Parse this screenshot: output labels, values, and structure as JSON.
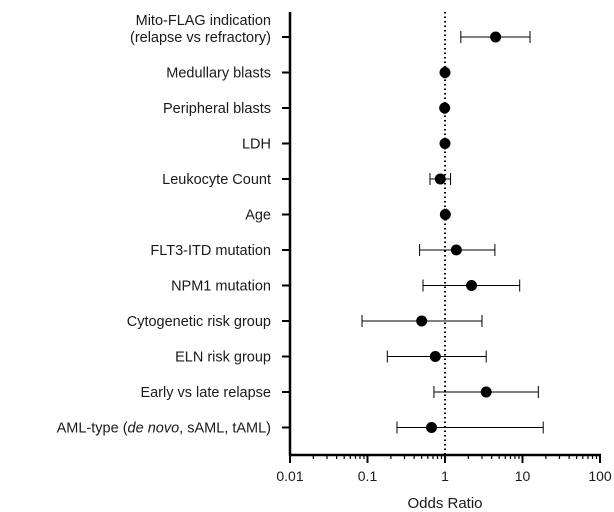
{
  "chart_data": {
    "type": "forest",
    "xlabel": "Odds Ratio",
    "ylabel": "",
    "title": "",
    "x_scale": "log",
    "xlim": [
      0.01,
      100
    ],
    "x_ticks": [
      "0.01",
      "0.1",
      "1",
      "10",
      "100"
    ],
    "reference_line": 1,
    "grid": false,
    "rows": [
      {
        "label_lines": [
          {
            "parts": [
              {
                "text": "Mito-FLAG indication"
              }
            ]
          },
          {
            "parts": [
              {
                "text": "(relapse vs refractory)"
              }
            ]
          }
        ],
        "or": 4.5,
        "ci": [
          1.6,
          12.5
        ]
      },
      {
        "label_lines": [
          {
            "parts": [
              {
                "text": "Medullary blasts"
              }
            ]
          }
        ],
        "or": 1.0,
        "ci": [
          0.97,
          1.03
        ]
      },
      {
        "label_lines": [
          {
            "parts": [
              {
                "text": "Peripheral blasts"
              }
            ]
          }
        ],
        "or": 0.99,
        "ci": [
          0.97,
          1.02
        ]
      },
      {
        "label_lines": [
          {
            "parts": [
              {
                "text": "LDH"
              }
            ]
          }
        ],
        "or": 1.0,
        "ci": [
          0.99,
          1.01
        ]
      },
      {
        "label_lines": [
          {
            "parts": [
              {
                "text": "Leukocyte Count"
              }
            ]
          }
        ],
        "or": 0.87,
        "ci": [
          0.64,
          1.18
        ]
      },
      {
        "label_lines": [
          {
            "parts": [
              {
                "text": "Age"
              }
            ]
          }
        ],
        "or": 1.01,
        "ci": [
          0.98,
          1.04
        ]
      },
      {
        "label_lines": [
          {
            "parts": [
              {
                "text": "FLT3-ITD mutation"
              }
            ]
          }
        ],
        "or": 1.4,
        "ci": [
          0.47,
          4.4
        ]
      },
      {
        "label_lines": [
          {
            "parts": [
              {
                "text": "NPM1 mutation"
              }
            ]
          }
        ],
        "or": 2.2,
        "ci": [
          0.52,
          9.2
        ]
      },
      {
        "label_lines": [
          {
            "parts": [
              {
                "text": "Cytogenetic risk group"
              }
            ]
          }
        ],
        "or": 0.5,
        "ci": [
          0.085,
          3.0
        ]
      },
      {
        "label_lines": [
          {
            "parts": [
              {
                "text": "ELN risk group"
              }
            ]
          }
        ],
        "or": 0.75,
        "ci": [
          0.18,
          3.4
        ]
      },
      {
        "label_lines": [
          {
            "parts": [
              {
                "text": "Early vs late relapse"
              }
            ]
          }
        ],
        "or": 3.4,
        "ci": [
          0.72,
          16.0
        ]
      },
      {
        "label_lines": [
          {
            "parts": [
              {
                "text": "AML-type ("
              },
              {
                "text": "de novo",
                "italic": true
              },
              {
                "text": ", sAML, tAML)"
              }
            ]
          }
        ],
        "or": 0.67,
        "ci": [
          0.24,
          18.5
        ]
      }
    ]
  }
}
